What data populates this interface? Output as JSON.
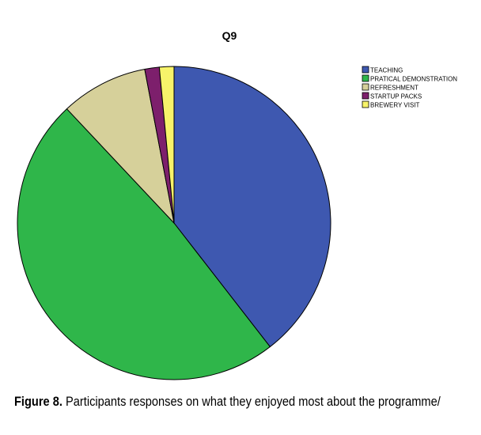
{
  "chart_data": {
    "type": "pie",
    "title": "Q9",
    "categories": [
      "TEACHING",
      "PRATICAL DEMONSTRATION",
      "REFRESHMENT",
      "STARTUP PACKS",
      "BREWERY VISIT"
    ],
    "values": [
      39.5,
      48.5,
      9.0,
      1.5,
      1.5
    ],
    "colors": [
      "#3e58b0",
      "#2fb64a",
      "#d6d09a",
      "#7d1f6c",
      "#f7f36a"
    ],
    "start_angle": "12 o'clock",
    "direction": "clockwise",
    "legend": "top-right"
  },
  "caption": {
    "label": "Figure 8.",
    "text": "Participants responses on what they enjoyed most about the programme/"
  }
}
